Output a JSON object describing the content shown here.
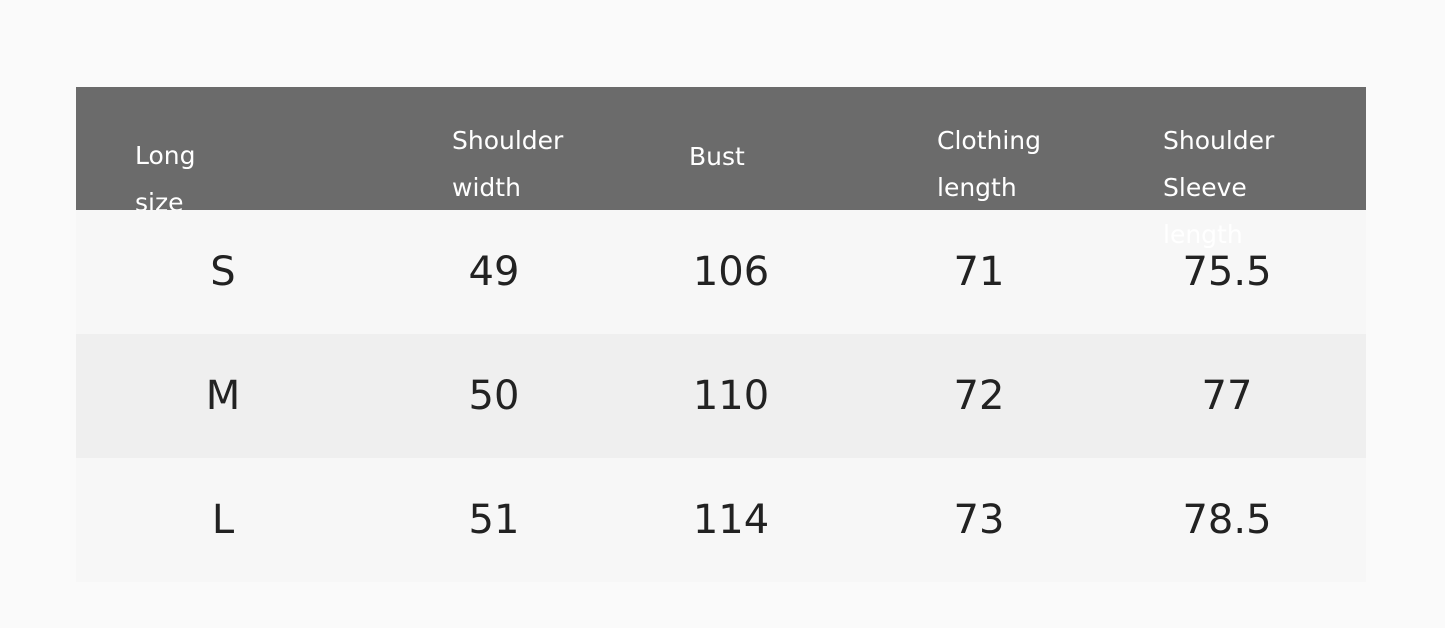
{
  "header": [
    "Long size",
    "Shoulder width",
    "Bust",
    "Clothing length",
    "Shoulder Sleeve length"
  ],
  "rows": [
    {
      "size": "S",
      "shoulder_width": "49",
      "bust": "106",
      "clothing_length": "71",
      "shoulder_sleeve_length": "75.5"
    },
    {
      "size": "M",
      "shoulder_width": "50",
      "bust": "110",
      "clothing_length": "72",
      "shoulder_sleeve_length": "77"
    },
    {
      "size": "L",
      "shoulder_width": "51",
      "bust": "114",
      "clothing_length": "73",
      "shoulder_sleeve_length": "78.5"
    }
  ],
  "colors": {
    "header_bg": "#6b6b6b",
    "row_light": "#f7f7f7",
    "row_dark": "#efefef"
  }
}
